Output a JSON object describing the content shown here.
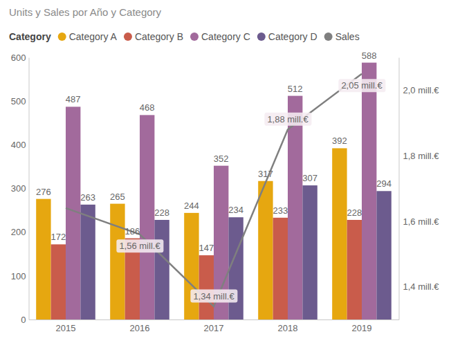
{
  "chart_data": {
    "type": "bar",
    "title": "Units y Sales por Año y Category",
    "legend_title": "Category",
    "categories": [
      "2015",
      "2016",
      "2017",
      "2018",
      "2019"
    ],
    "series": [
      {
        "name": "Category A",
        "color": "#e6a710",
        "type": "bar",
        "values": [
          276,
          265,
          244,
          317,
          392
        ]
      },
      {
        "name": "Category B",
        "color": "#c95c4b",
        "type": "bar",
        "values": [
          172,
          186,
          147,
          233,
          228
        ]
      },
      {
        "name": "Category C",
        "color": "#a26a9c",
        "type": "bar",
        "values": [
          487,
          468,
          352,
          512,
          588
        ]
      },
      {
        "name": "Category D",
        "color": "#6c5b8e",
        "type": "bar",
        "values": [
          263,
          228,
          234,
          307,
          294
        ]
      },
      {
        "name": "Sales",
        "color": "#7f7f7f",
        "type": "line",
        "axis": "y2",
        "values": [
          1.64,
          1.56,
          1.34,
          1.88,
          2.05
        ],
        "value_labels": [
          null,
          "1,56 mill.€",
          "1,34 mill.€",
          "1,88 mill.€",
          "2,05 mill.€"
        ]
      }
    ],
    "ylim": [
      0,
      600
    ],
    "yticks": [
      0,
      100,
      200,
      300,
      400,
      500,
      600
    ],
    "y2lim": [
      1.3,
      2.1
    ],
    "y2ticks": [
      {
        "value": 1.4,
        "label": "1,4 mill.€"
      },
      {
        "value": 1.6,
        "label": "1,6 mill.€"
      },
      {
        "value": 1.8,
        "label": "1,8 mill.€"
      },
      {
        "value": 2.0,
        "label": "2,0 mill.€"
      }
    ],
    "grid": false,
    "legend": "top-left",
    "data_labels": true
  }
}
